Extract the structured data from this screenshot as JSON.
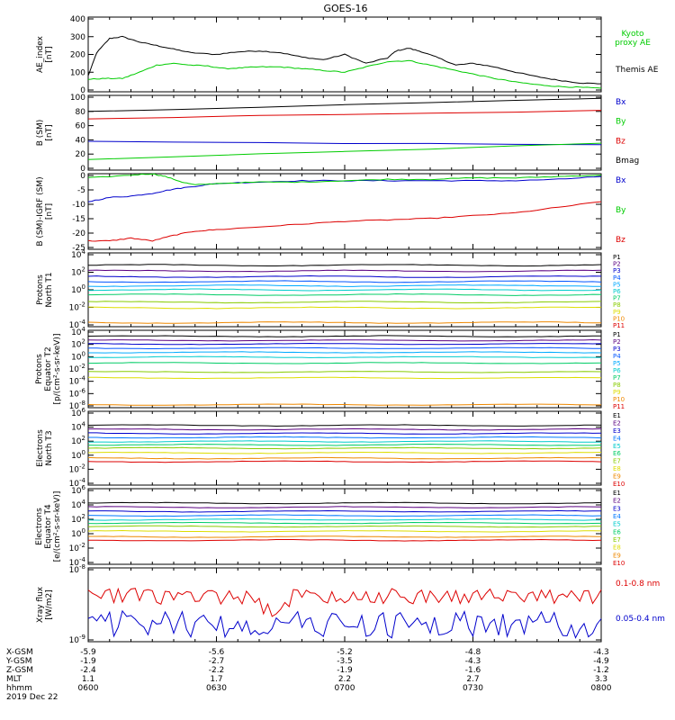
{
  "title": "GOES-16",
  "chart_data": [
    {
      "type": "line",
      "ylabel": [
        "AE_index",
        "[nT]"
      ],
      "yticks": [
        "400",
        "300",
        "200",
        "100",
        "0"
      ],
      "ylim": [
        0,
        420
      ],
      "series": [
        {
          "name": "Themis AE",
          "color": "#000000",
          "x": [
            0,
            2,
            5,
            8,
            12,
            16,
            20,
            24,
            30,
            35,
            40,
            45,
            50,
            55,
            60,
            65,
            70,
            72,
            75,
            78,
            82,
            86,
            90,
            95,
            100,
            105,
            110,
            115,
            120
          ],
          "values": [
            90,
            220,
            300,
            310,
            280,
            260,
            240,
            220,
            210,
            225,
            230,
            220,
            195,
            180,
            210,
            160,
            190,
            230,
            245,
            225,
            190,
            150,
            160,
            140,
            110,
            85,
            65,
            50,
            45
          ]
        },
        {
          "name": "Kyoto proxy AE",
          "color": "#00cc00",
          "x": [
            0,
            4,
            8,
            12,
            16,
            20,
            24,
            28,
            32,
            36,
            40,
            45,
            50,
            55,
            60,
            65,
            70,
            75,
            80,
            85,
            90,
            95,
            100,
            105,
            110,
            115,
            120
          ],
          "values": [
            70,
            75,
            75,
            110,
            150,
            160,
            150,
            145,
            130,
            135,
            140,
            140,
            130,
            120,
            110,
            140,
            170,
            175,
            150,
            125,
            100,
            75,
            55,
            40,
            30,
            25,
            20
          ]
        }
      ]
    },
    {
      "type": "line",
      "ylabel": [
        "B (SM)",
        "[nT]"
      ],
      "yticks": [
        "100",
        "80",
        "60",
        "40",
        "20",
        "0"
      ],
      "ylim": [
        0,
        100
      ],
      "series": [
        {
          "name": "Bx",
          "color": "#0000cc",
          "x": [
            0,
            120
          ],
          "values": [
            38,
            34
          ]
        },
        {
          "name": "By",
          "color": "#00cc00",
          "x": [
            0,
            120
          ],
          "values": [
            14,
            36
          ]
        },
        {
          "name": "Bz",
          "color": "#dd0000",
          "x": [
            0,
            120
          ],
          "values": [
            69,
            80
          ]
        },
        {
          "name": "Bmag",
          "color": "#000000",
          "x": [
            0,
            120
          ],
          "values": [
            78,
            96
          ]
        }
      ]
    },
    {
      "type": "line",
      "ylabel": [
        "B (SM)-IGRF (SM)",
        "[nT]"
      ],
      "yticks": [
        "0",
        "-5",
        "-10",
        "-15",
        "-20",
        "-25"
      ],
      "ylim": [
        -27,
        0
      ],
      "series": [
        {
          "name": "Bx",
          "color": "#0000cc",
          "x": [
            0,
            5,
            10,
            15,
            20,
            25,
            30,
            40,
            50,
            60,
            70,
            80,
            90,
            100,
            110,
            120
          ],
          "values": [
            -10,
            -8.5,
            -8,
            -7,
            -5.5,
            -4.5,
            -3.5,
            -3,
            -2.5,
            -2.5,
            -2.5,
            -2.5,
            -2.5,
            -2.5,
            -2,
            -1
          ]
        },
        {
          "name": "By",
          "color": "#00cc00",
          "x": [
            0,
            10,
            15,
            18,
            22,
            25,
            30,
            40,
            50,
            60,
            70,
            80,
            90,
            100,
            110,
            120
          ],
          "values": [
            -1.5,
            -0.5,
            0,
            -1,
            -3,
            -4,
            -3.5,
            -3,
            -3,
            -2.5,
            -2,
            -2,
            -1.5,
            -1.5,
            -1,
            -0.5
          ]
        },
        {
          "name": "Bz",
          "color": "#dd0000",
          "x": [
            0,
            5,
            10,
            15,
            20,
            25,
            30,
            40,
            50,
            60,
            70,
            80,
            90,
            100,
            110,
            120
          ],
          "values": [
            -24,
            -24,
            -23,
            -24,
            -22,
            -20.5,
            -20,
            -19,
            -18,
            -17,
            -16.5,
            -16,
            -15,
            -14,
            -12,
            -10
          ]
        }
      ]
    },
    {
      "type": "line",
      "ylabel": [
        "Protons",
        "North T1"
      ],
      "yticks": [
        "10^4",
        "10^2",
        "10^0",
        "10^-2",
        "10^-4"
      ],
      "log_range": [
        -4.5,
        4.5
      ],
      "channels": [
        "P1",
        "P2",
        "P3",
        "P4",
        "P5",
        "P6",
        "P7",
        "P8",
        "P9",
        "P10",
        "P11"
      ],
      "channel_colors": [
        "#000000",
        "#5a0080",
        "#0000cc",
        "#0055ff",
        "#00aaff",
        "#00cccc",
        "#00cc66",
        "#88cc00",
        "#dddd00",
        "#ee8800",
        "#dd0000"
      ],
      "log_levels": [
        3.0,
        2.3,
        1.6,
        1.0,
        0.5,
        0.0,
        -0.6,
        -1.5,
        -2.2,
        -4.0,
        -4.5
      ]
    },
    {
      "type": "line",
      "ylabel": [
        "Protons",
        "Equator T2",
        "[p/(cm²-s-sr-keV)]"
      ],
      "yticks": [
        "10^4",
        "10^2",
        "10^0",
        "10^-2",
        "10^-4",
        "10^-6",
        "10^-8"
      ],
      "log_range": [
        -8.5,
        4.5
      ],
      "channels": [
        "P1",
        "P2",
        "P3",
        "P4",
        "P5",
        "P6",
        "P7",
        "P8",
        "P9",
        "P10",
        "P11"
      ],
      "channel_colors": [
        "#000000",
        "#5a0080",
        "#0000cc",
        "#0055ff",
        "#00aaff",
        "#00cccc",
        "#00cc66",
        "#88cc00",
        "#dddd00",
        "#ee8800",
        "#dd0000"
      ],
      "log_levels": [
        3.5,
        2.8,
        2.2,
        1.5,
        0.8,
        0.0,
        -1.0,
        -2.5,
        -3.5,
        -8,
        -8.5
      ]
    },
    {
      "type": "line",
      "ylabel": [
        "Electrons",
        "North T3"
      ],
      "yticks": [
        "10^6",
        "10^4",
        "10^2",
        "10^0",
        "10^-2",
        "10^-4"
      ],
      "log_range": [
        -4.5,
        6.5
      ],
      "channels": [
        "E1",
        "E2",
        "E3",
        "E4",
        "E5",
        "E6",
        "E7",
        "E8",
        "E9",
        "E10"
      ],
      "channel_colors": [
        "#000000",
        "#5a0080",
        "#0000cc",
        "#0077ff",
        "#00cccc",
        "#00cc66",
        "#88cc00",
        "#dddd00",
        "#ee8800",
        "#dd0000"
      ],
      "log_levels": [
        4.4,
        3.8,
        3.2,
        2.6,
        2.0,
        1.5,
        1.0,
        0.3,
        -0.5,
        -1.0
      ]
    },
    {
      "type": "line",
      "ylabel": [
        "Electrons",
        "Equator T4",
        "[e/(cm²-s-sr-keV)]"
      ],
      "yticks": [
        "10^6",
        "10^4",
        "10^2",
        "10^0",
        "10^-2",
        "10^-4"
      ],
      "log_range": [
        -4.5,
        6.5
      ],
      "channels": [
        "E1",
        "E2",
        "E3",
        "E4",
        "E5",
        "E6",
        "E7",
        "E8",
        "E9",
        "E10"
      ],
      "channel_colors": [
        "#000000",
        "#5a0080",
        "#0000cc",
        "#0077ff",
        "#00cccc",
        "#00cc66",
        "#88cc00",
        "#dddd00",
        "#ee8800",
        "#dd0000"
      ],
      "log_levels": [
        4.4,
        3.8,
        3.2,
        2.6,
        2.0,
        1.5,
        1.0,
        0.3,
        -0.5,
        -1.0
      ]
    },
    {
      "type": "line",
      "ylabel": [
        "Xray flux",
        "[W/m2]"
      ],
      "yticks": [
        "10^-8",
        "10^-9"
      ],
      "series": [
        {
          "name": "0.1-0.8 nm",
          "color": "#dd0000"
        },
        {
          "name": "0.05-0.4 nm",
          "color": "#0000cc"
        }
      ]
    }
  ],
  "ephemeris": {
    "labels": [
      "X-GSM",
      "Y-GSM",
      "Z-GSM",
      "MLT",
      "hhmm",
      "2019 Dec 22"
    ],
    "columns": [
      {
        "values": [
          "-5.9",
          "-1.9",
          "-2.4",
          "1.1",
          "0600"
        ]
      },
      {
        "values": [
          "-5.6",
          "-2.7",
          "-2.2",
          "1.7",
          "0630"
        ]
      },
      {
        "values": [
          "-5.2",
          "-3.5",
          "-1.9",
          "2.2",
          "0700"
        ]
      },
      {
        "values": [
          "-4.8",
          "-4.3",
          "-1.6",
          "2.7",
          "0730"
        ]
      },
      {
        "values": [
          "-4.3",
          "-4.9",
          "-1.2",
          "3.3",
          "0800"
        ]
      }
    ]
  }
}
